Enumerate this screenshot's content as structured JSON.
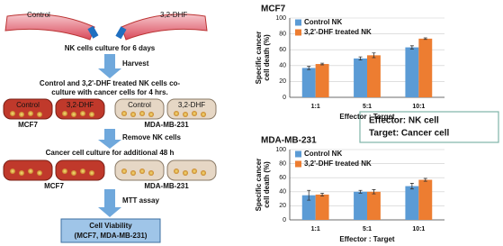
{
  "diagram": {
    "top_dishes": [
      "Control",
      "3,2-DHF"
    ],
    "step1": "NK cells culture for 6 days",
    "arrow1": "Harvest",
    "step2": [
      "Control and 3,2'-DHF treated NK cells co-",
      "culture with cancer cells for 4 hrs."
    ],
    "row1_dishes": [
      "Control",
      "3,2-DHF",
      "Control",
      "3,2-DHF"
    ],
    "row1_cells": [
      "MCF7",
      "MDA-MB-231"
    ],
    "arrow2": "Remove NK cells",
    "step3": "Cancer cell culture for additional 48 h",
    "row2_cells": [
      "MCF7",
      "MDA-MB-231"
    ],
    "arrow3": "MTT assay",
    "result": [
      "Cell Viability",
      "(MCF7, MDA-MB-231)"
    ]
  },
  "info_box": [
    "Effector: NK cell",
    "Target: Cancer cell"
  ],
  "chart_data": [
    {
      "type": "bar",
      "title": "MCF7",
      "ylabel": [
        "Specific cancer",
        "cell death (%)"
      ],
      "xlabel": "Effector : Target",
      "categories": [
        "1:1",
        "5:1",
        "10:1"
      ],
      "series": [
        {
          "name": "Control NK",
          "color": "#5b9bd5",
          "values": [
            37,
            49,
            63
          ],
          "errors": [
            2,
            2,
            2
          ]
        },
        {
          "name": "3,2'-DHF treated NK",
          "color": "#ed7d31",
          "values": [
            42,
            53,
            74
          ],
          "errors": [
            1,
            3,
            1
          ]
        }
      ],
      "ylim": [
        0,
        100
      ],
      "yticks": [
        0,
        20,
        40,
        60,
        80,
        100
      ],
      "grid": true,
      "legend": "top-left"
    },
    {
      "type": "bar",
      "title": "MDA-MB-231",
      "ylabel": [
        "Specific cancer",
        "cell death (%)"
      ],
      "xlabel": "Effector : Target",
      "categories": [
        "1:1",
        "5:1",
        "10:1"
      ],
      "series": [
        {
          "name": "Control NK",
          "color": "#5b9bd5",
          "values": [
            35,
            40,
            48
          ],
          "errors": [
            7,
            2,
            4
          ]
        },
        {
          "name": "3,2'-DHF treated NK",
          "color": "#ed7d31",
          "values": [
            36,
            40,
            57
          ],
          "errors": [
            2,
            3,
            2
          ]
        }
      ],
      "ylim": [
        0,
        100
      ],
      "yticks": [
        0,
        20,
        40,
        60,
        80,
        100
      ],
      "grid": true,
      "legend": "top-left"
    }
  ]
}
